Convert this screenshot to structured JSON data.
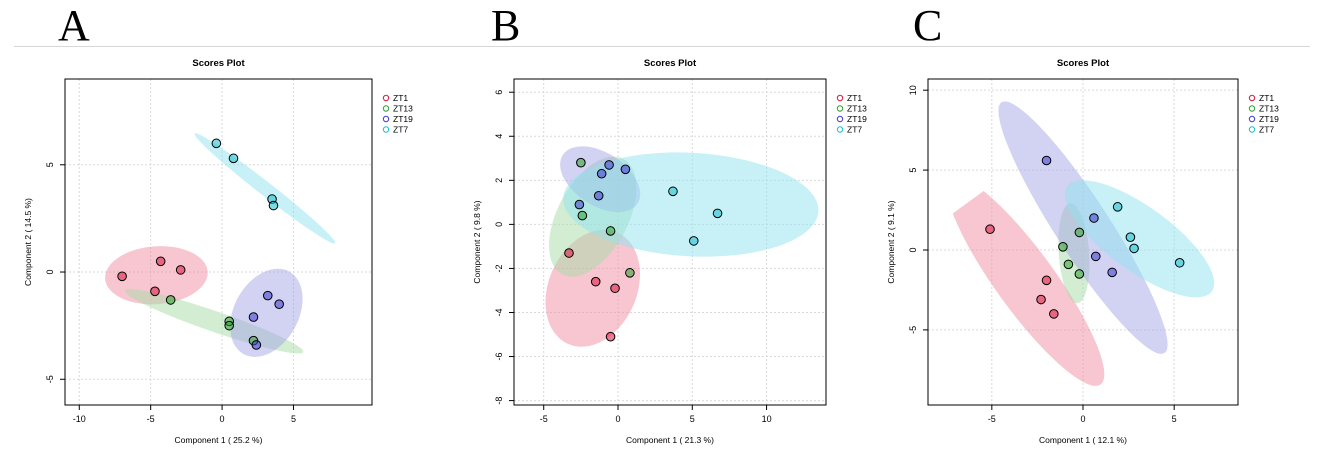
{
  "figure": {
    "panel_labels": [
      "A",
      "B",
      "C"
    ]
  },
  "colors": {
    "ZT1": "#dc143c",
    "ZT13": "#2ca02c",
    "ZT19": "#3b3bd0",
    "ZT7": "#17becf",
    "ZT1_fill": "#f08ea3",
    "ZT13_fill": "#a7dba7",
    "ZT19_fill": "#a6a6e6",
    "ZT7_fill": "#8fe3ef"
  },
  "chart_data": [
    {
      "type": "scatter",
      "panel": "A",
      "title": "Scores Plot",
      "xlabel": "Component 1 ( 25.2 %)",
      "ylabel": "Component 2 ( 14.5 %)",
      "xlim": [
        -11,
        10.5
      ],
      "ylim": [
        -6.2,
        9
      ],
      "xticks": [
        -10,
        -5,
        0,
        5
      ],
      "yticks": [
        -5,
        0,
        5
      ],
      "xtick_labels": [
        "-10",
        "-5",
        "0",
        "5"
      ],
      "ytick_labels": [
        "-5",
        "0",
        "5"
      ],
      "legend": [
        "ZT1",
        "ZT13",
        "ZT19",
        "ZT7"
      ],
      "legend_position": "top-right-outside",
      "series": [
        {
          "name": "ZT1",
          "points": [
            [
              -7.0,
              -0.2
            ],
            [
              -4.3,
              0.5
            ],
            [
              -2.9,
              0.1
            ],
            [
              -4.7,
              -0.9
            ]
          ],
          "ellipse": {
            "cx": -4.6,
            "cy": -0.15,
            "rx": 3.6,
            "ry": 1.35,
            "angle": 4
          }
        },
        {
          "name": "ZT13",
          "points": [
            [
              -3.6,
              -1.3
            ],
            [
              0.5,
              -2.3
            ],
            [
              0.5,
              -2.5
            ],
            [
              2.2,
              -3.2
            ]
          ],
          "ellipse": {
            "cx": -0.55,
            "cy": -2.3,
            "rx": 6.6,
            "ry": 0.48,
            "angle": -19
          }
        },
        {
          "name": "ZT19",
          "points": [
            [
              3.2,
              -1.1
            ],
            [
              4.0,
              -1.5
            ],
            [
              2.2,
              -2.1
            ],
            [
              2.4,
              -3.4
            ]
          ],
          "ellipse": {
            "cx": 3.1,
            "cy": -1.9,
            "rx": 3.3,
            "ry": 1.5,
            "angle": 61
          }
        },
        {
          "name": "ZT7",
          "points": [
            [
              -0.4,
              6.0
            ],
            [
              0.8,
              5.3
            ],
            [
              3.5,
              3.4
            ],
            [
              3.6,
              3.1
            ]
          ],
          "ellipse": {
            "cx": 3.0,
            "cy": 3.9,
            "rx": 6.25,
            "ry": 0.32,
            "angle": -38
          }
        }
      ]
    },
    {
      "type": "scatter",
      "panel": "B",
      "title": "Scores Plot",
      "xlabel": "Component 1 ( 21.3 %)",
      "ylabel": "Component 2 ( 9.8 %)",
      "xlim": [
        -7,
        14
      ],
      "ylim": [
        -8.2,
        6.6
      ],
      "xticks": [
        -5,
        0,
        5,
        10
      ],
      "yticks": [
        -8,
        -6,
        -4,
        -2,
        0,
        2,
        4,
        6
      ],
      "xtick_labels": [
        "-5",
        "0",
        "5",
        "10"
      ],
      "ytick_labels": [
        "-8",
        "-6",
        "-4",
        "-2",
        "0",
        "2",
        "4",
        "6"
      ],
      "legend": [
        "ZT1",
        "ZT13",
        "ZT19",
        "ZT7"
      ],
      "legend_position": "top-right-outside",
      "series": [
        {
          "name": "ZT1",
          "points": [
            [
              -3.3,
              -1.3
            ],
            [
              -1.5,
              -2.6
            ],
            [
              -0.2,
              -2.9
            ],
            [
              -0.5,
              -5.1
            ]
          ],
          "ellipse": {
            "cx": -1.7,
            "cy": -2.9,
            "rx": 4.1,
            "ry": 2.0,
            "angle": 66
          }
        },
        {
          "name": "ZT13",
          "points": [
            [
              -2.5,
              2.8
            ],
            [
              -2.4,
              0.4
            ],
            [
              -0.5,
              -0.3
            ],
            [
              0.8,
              -2.2
            ]
          ],
          "ellipse": {
            "cx": -1.7,
            "cy": 0.35,
            "rx": 4.4,
            "ry": 1.6,
            "angle": 62
          }
        },
        {
          "name": "ZT19",
          "points": [
            [
              -0.6,
              2.7
            ],
            [
              0.5,
              2.5
            ],
            [
              -1.1,
              2.3
            ],
            [
              -1.3,
              1.3
            ],
            [
              -2.6,
              0.9
            ]
          ],
          "ellipse": {
            "cx": -1.2,
            "cy": 2.05,
            "rx": 3.0,
            "ry": 1.2,
            "angle": -33
          }
        },
        {
          "name": "ZT7",
          "points": [
            [
              3.7,
              1.5
            ],
            [
              6.7,
              0.5
            ],
            [
              5.1,
              -0.75
            ]
          ],
          "ellipse": {
            "cx": 4.9,
            "cy": 0.9,
            "rx": 8.6,
            "ry": 2.35,
            "angle": -3
          }
        }
      ]
    },
    {
      "type": "scatter",
      "panel": "C",
      "title": "Scores Plot",
      "xlabel": "Component 1 ( 12.1 %)",
      "ylabel": "Component 2 ( 9.1 %)",
      "xlim": [
        -8.5,
        8.5
      ],
      "ylim": [
        -9.7,
        10.7
      ],
      "xticks": [
        -5,
        0,
        5
      ],
      "yticks": [
        -5,
        0,
        5,
        10
      ],
      "xtick_labels": [
        "-5",
        "0",
        "5"
      ],
      "ytick_labels": [
        "-5",
        "0",
        "5",
        "10"
      ],
      "legend": [
        "ZT1",
        "ZT13",
        "ZT19",
        "ZT7"
      ],
      "legend_position": "top-right-outside",
      "series": [
        {
          "name": "ZT1",
          "points": [
            [
              -5.1,
              1.3
            ],
            [
              -2.0,
              -1.9
            ],
            [
              -2.3,
              -3.1
            ],
            [
              -1.6,
              -4.0
            ]
          ],
          "ellipse": {
            "cx": -3.15,
            "cy": -1.95,
            "rx": 7.0,
            "ry": 1.85,
            "angle": -54
          }
        },
        {
          "name": "ZT13",
          "points": [
            [
              -0.2,
              1.1
            ],
            [
              -1.1,
              0.2
            ],
            [
              -0.8,
              -0.9
            ],
            [
              -0.2,
              -1.5
            ]
          ],
          "ellipse": {
            "cx": -0.5,
            "cy": -0.2,
            "rx": 2.75,
            "ry": 0.95,
            "angle": -86
          }
        },
        {
          "name": "ZT19",
          "points": [
            [
              -2.0,
              5.6
            ],
            [
              0.6,
              2.0
            ],
            [
              0.7,
              -0.4
            ],
            [
              1.6,
              -1.4
            ]
          ],
          "ellipse": {
            "cx": 0.0,
            "cy": 1.4,
            "rx": 8.2,
            "ry": 1.7,
            "angle": -57
          }
        },
        {
          "name": "ZT7",
          "points": [
            [
              1.9,
              2.7
            ],
            [
              2.6,
              0.8
            ],
            [
              2.8,
              0.1
            ],
            [
              5.3,
              -0.8
            ]
          ],
          "ellipse": {
            "cx": 3.1,
            "cy": 0.7,
            "rx": 4.9,
            "ry": 2.0,
            "angle": -36
          }
        }
      ]
    }
  ]
}
